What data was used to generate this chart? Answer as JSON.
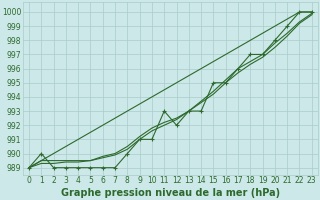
{
  "xlabel": "Graphe pression niveau de la mer (hPa)",
  "x": [
    0,
    1,
    2,
    3,
    4,
    5,
    6,
    7,
    8,
    9,
    10,
    11,
    12,
    13,
    14,
    15,
    16,
    17,
    18,
    19,
    20,
    21,
    22,
    23
  ],
  "line_marked": [
    989,
    990,
    989,
    989,
    989,
    989,
    989,
    989,
    990,
    991,
    991,
    993,
    992,
    993,
    993,
    995,
    995,
    996,
    997,
    997,
    998,
    999,
    1000,
    1000
  ],
  "line_smooth1": [
    989,
    989.5,
    989.5,
    989.5,
    989.5,
    989.5,
    989.8,
    990.0,
    990.5,
    991.2,
    991.8,
    992.2,
    992.5,
    993.0,
    993.6,
    994.2,
    995.0,
    995.7,
    996.3,
    996.8,
    997.5,
    998.3,
    999.2,
    999.8
  ],
  "line_smooth2": [
    989,
    989.3,
    989.3,
    989.4,
    989.4,
    989.5,
    989.7,
    989.9,
    990.3,
    991.0,
    991.6,
    992.0,
    992.4,
    993.0,
    993.7,
    994.4,
    995.2,
    996.0,
    996.5,
    997.0,
    997.8,
    998.5,
    999.3,
    999.9
  ],
  "line_trend": [
    989,
    989.5,
    990.0,
    990.5,
    991.0,
    991.5,
    992.0,
    992.5,
    993.0,
    993.5,
    994.0,
    994.5,
    995.0,
    995.5,
    996.0,
    996.5,
    997.0,
    997.5,
    998.0,
    998.5,
    999.0,
    999.5,
    1000.0,
    1000.0
  ],
  "line_color": "#2d6a2d",
  "bg_color": "#cce8e8",
  "grid_color": "#aacccc",
  "ylim": [
    988.5,
    1000.7
  ],
  "xlim": [
    -0.5,
    23.5
  ],
  "yticks": [
    989,
    990,
    991,
    992,
    993,
    994,
    995,
    996,
    997,
    998,
    999,
    1000
  ],
  "xticks": [
    0,
    1,
    2,
    3,
    4,
    5,
    6,
    7,
    8,
    9,
    10,
    11,
    12,
    13,
    14,
    15,
    16,
    17,
    18,
    19,
    20,
    21,
    22,
    23
  ],
  "tick_fontsize": 5.5,
  "xlabel_fontsize": 7,
  "figsize": [
    3.2,
    2.0
  ],
  "dpi": 100
}
